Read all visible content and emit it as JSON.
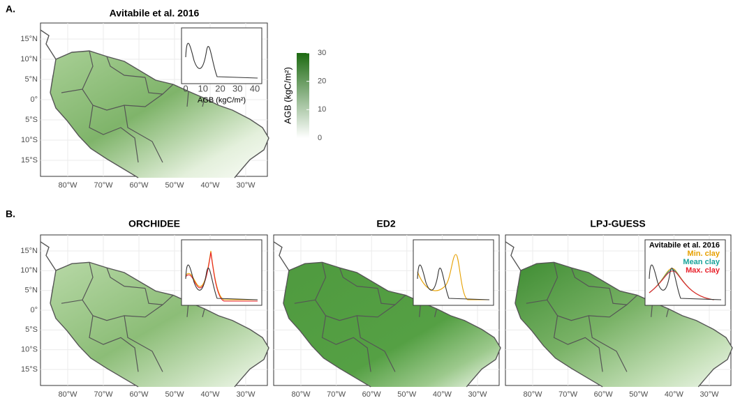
{
  "panel_a": {
    "label": "A.",
    "title": "Avitabile et al. 2016"
  },
  "panel_b": {
    "label": "B.",
    "titles": [
      "ORCHIDEE",
      "ED2",
      "LPJ-GUESS"
    ]
  },
  "lat_ticks": [
    "15°N",
    "10°N",
    "5°N",
    "0°",
    "5°S",
    "10°S",
    "15°S"
  ],
  "lon_ticks": [
    "80°W",
    "70°W",
    "60°W",
    "50°W",
    "40°W",
    "30°W"
  ],
  "colorbar": {
    "label": "AGB (kgC/m²)",
    "ticks": [
      0,
      10,
      20,
      30
    ]
  },
  "inset": {
    "xlabel": "AGB (kgC/m²)",
    "xticks": [
      0,
      10,
      20,
      30,
      40
    ]
  },
  "legend": [
    "Avitabile et al. 2016",
    "Min. clay",
    "Mean clay",
    "Max. clay"
  ]
}
